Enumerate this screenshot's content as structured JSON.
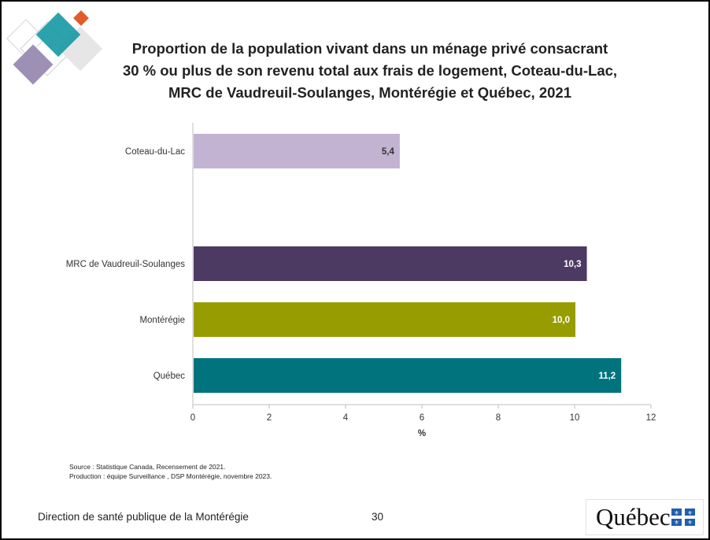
{
  "slide": {
    "title_lines": [
      "Proportion de la population vivant dans un ménage privé consacrant",
      "30 % ou plus de son revenu total aux frais de logement, Coteau-du-Lac,",
      "MRC de Vaudreuil-Soulanges, Montérégie et Québec, 2021"
    ],
    "source_lines": [
      "Source : Statistique Canada, Recensement de 2021.",
      "Production : équipe Surveillance , DSP Montérégie, novembre 2023."
    ],
    "footer": "Direction de santé publique de la Montérégie",
    "page_number": "30",
    "brand": "Québec"
  },
  "colors": {
    "coteau": "#c3b3d3",
    "mrc": "#4d3a63",
    "monteregie": "#979d00",
    "quebec": "#00737d",
    "deco_teal": "#1a9ba5",
    "deco_orange": "#e15c2a",
    "deco_purple": "#9e8fb5"
  },
  "chart_data": {
    "type": "bar",
    "orientation": "horizontal",
    "categories": [
      "Coteau-du-Lac",
      "MRC de Vaudreuil-Soulanges",
      "Montérégie",
      "Québec"
    ],
    "values": [
      5.4,
      10.3,
      10.0,
      11.2
    ],
    "value_labels": [
      "5,4",
      "10,3",
      "10,0",
      "11,2"
    ],
    "colors": [
      "#c3b3d3",
      "#4d3a63",
      "#979d00",
      "#00737d"
    ],
    "label_colors": [
      "#333333",
      "#ffffff",
      "#ffffff",
      "#ffffff"
    ],
    "xlabel": "%",
    "xlim": [
      0,
      12
    ],
    "xticks": [
      0,
      2,
      4,
      6,
      8,
      10,
      12
    ],
    "grid": false,
    "legend": "none"
  }
}
